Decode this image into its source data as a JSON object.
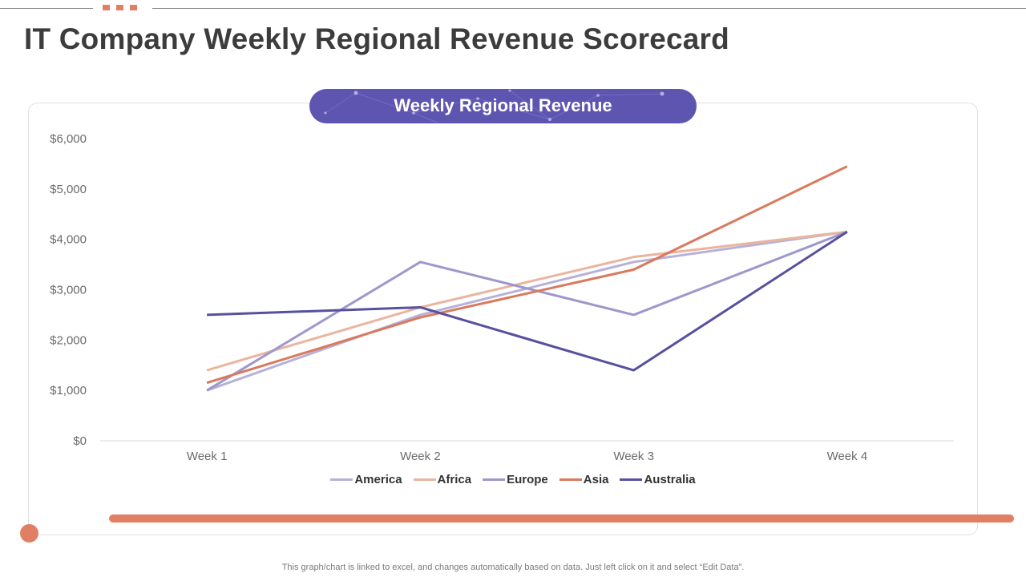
{
  "page": {
    "title": "IT Company Weekly Regional Revenue Scorecard",
    "footnote": "This graph/chart is linked to excel,  and changes automatically based on data. Just left click on it and select “Edit Data”."
  },
  "colors": {
    "accent": "#e07f64",
    "pill": "#5e55b0"
  },
  "chart_data": {
    "type": "line",
    "title": "Weekly Regional Revenue",
    "categories": [
      "Week 1",
      "Week 2",
      "Week 3",
      "Week 4"
    ],
    "ylim": [
      0,
      6000
    ],
    "yticks": [
      0,
      1000,
      2000,
      3000,
      4000,
      5000,
      6000
    ],
    "ytick_labels": [
      "$0",
      "$1,000",
      "$2,000",
      "$3,000",
      "$4,000",
      "$5,000",
      "$6,000"
    ],
    "xlabel": "",
    "ylabel": "",
    "grid": false,
    "legend_position": "bottom",
    "series": [
      {
        "name": "America",
        "color": "#b6b1d9",
        "values": [
          1000,
          2500,
          3550,
          4150
        ]
      },
      {
        "name": "Africa",
        "color": "#eab59f",
        "values": [
          1400,
          2650,
          3650,
          4150
        ]
      },
      {
        "name": "Europe",
        "color": "#9d97cb",
        "values": [
          1000,
          3550,
          2500,
          4150
        ]
      },
      {
        "name": "Asia",
        "color": "#d9795d",
        "values": [
          1150,
          2450,
          3400,
          5450
        ]
      },
      {
        "name": "Australia",
        "color": "#57509f",
        "values": [
          2500,
          2650,
          1400,
          4150
        ]
      }
    ]
  }
}
